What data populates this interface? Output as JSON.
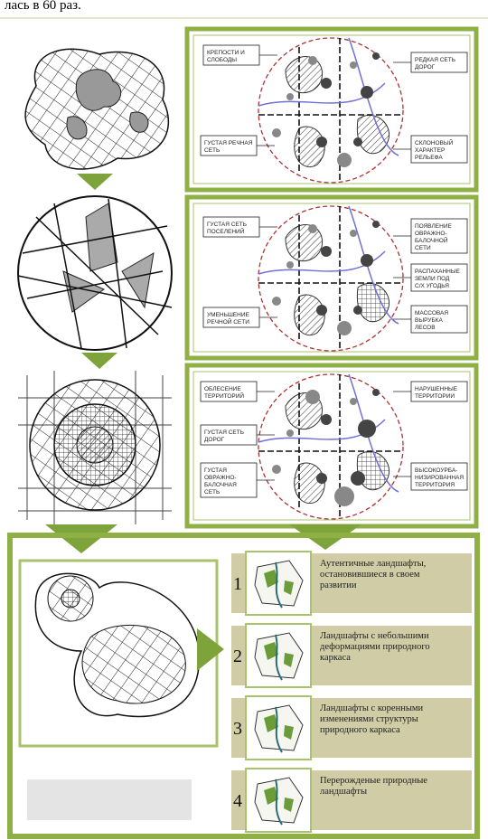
{
  "header": {
    "text": "лась в 60 раз."
  },
  "panels": [
    {
      "labels": [
        [
          "КРЕПОСТИ И",
          "СЛОБОДЫ"
        ],
        [
          "РЕДКАЯ СЕТЬ",
          "ДОРОГ"
        ],
        [
          "ГУСТАЯ РЕЧНАЯ",
          "СЕТЬ"
        ],
        [
          "СКЛОНОВЫЙ",
          "ХАРАКТЕР",
          "РЕЛЬЕФА"
        ]
      ]
    },
    {
      "labels": [
        [
          "ГУСТАЯ СЕТЬ",
          "ПОСЕЛЕНИЙ"
        ],
        [
          "ПОЯВЛЕНИЕ",
          "ОВРАЖНО-",
          "БАЛОЧНОЙ",
          "СЕТИ"
        ],
        [
          "РАСПАХАННЫЕ",
          "ЗЕМЛИ ПОД",
          "С/Х УГОДЬЯ"
        ],
        [
          "УМЕНЬШЕНИЕ",
          "РЕЧНОЙ СЕТИ"
        ],
        [
          "МАССОВАЯ",
          "ВЫРУБКА",
          "ЛЕСОВ"
        ]
      ]
    },
    {
      "labels": [
        [
          "ОБЛЕСЕНИЕ",
          "ТЕРРИТОРИЙ"
        ],
        [
          "НАРУШЕННЫЕ",
          "ТЕРРИТОРИИ"
        ],
        [
          "ГУСТАЯ СЕТЬ",
          "ДОРОГ"
        ],
        [
          "ГУСТАЯ",
          "ОВРАЖНО-",
          "БАЛОЧНАЯ",
          "СЕТЬ"
        ],
        [
          "ВЫСОКОУРБА-",
          "НИЗИРОВАННАЯ",
          "ТЕРРИТОРИЯ"
        ]
      ]
    }
  ],
  "types": [
    {
      "number": "1",
      "lines": [
        "Аутентичные ландшафты,",
        "остановившиеся в своем",
        "развитии"
      ]
    },
    {
      "number": "2",
      "lines": [
        "Ландшафты с небольшими",
        "деформациями природного",
        "каркаса"
      ]
    },
    {
      "number": "3",
      "lines": [
        "Ландшафты с коренными",
        "изменениями структуры",
        "природного каркаса"
      ]
    },
    {
      "number": "4",
      "lines": [
        "Перерожденые природные",
        "ландшафты"
      ]
    }
  ]
}
